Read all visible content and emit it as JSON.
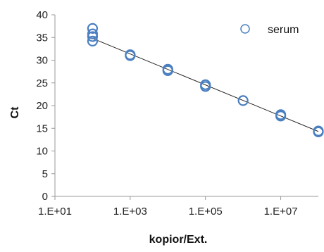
{
  "chart_data": {
    "type": "scatter",
    "xlabel": "kopior/Ext.",
    "ylabel": "Ct",
    "x_scale": "log10",
    "xlim": [
      10,
      100000000
    ],
    "ylim": [
      0,
      40
    ],
    "x_ticks": [
      10,
      1000,
      100000,
      10000000
    ],
    "x_tick_labels": [
      "1.E+01",
      "1.E+03",
      "1.E+05",
      "1.E+07"
    ],
    "y_ticks": [
      0,
      5,
      10,
      15,
      20,
      25,
      30,
      35,
      40
    ],
    "y_tick_labels": [
      "0",
      "5",
      "10",
      "15",
      "20",
      "25",
      "30",
      "35",
      "40"
    ],
    "grid": false,
    "legend_position": "top-right",
    "series": [
      {
        "name": "serum",
        "marker": "open-circle",
        "color": "#4a7fc1",
        "points": [
          {
            "x": 100,
            "y": 37.0
          },
          {
            "x": 100,
            "y": 35.8
          },
          {
            "x": 100,
            "y": 35.2
          },
          {
            "x": 100,
            "y": 34.2
          },
          {
            "x": 1000,
            "y": 31.2
          },
          {
            "x": 1000,
            "y": 31.0
          },
          {
            "x": 10000,
            "y": 28.0
          },
          {
            "x": 10000,
            "y": 27.7
          },
          {
            "x": 100000,
            "y": 24.6
          },
          {
            "x": 100000,
            "y": 24.2
          },
          {
            "x": 1000000,
            "y": 21.1
          },
          {
            "x": 10000000,
            "y": 18.0
          },
          {
            "x": 10000000,
            "y": 17.7
          },
          {
            "x": 100000000,
            "y": 14.4
          },
          {
            "x": 100000000,
            "y": 14.2
          }
        ]
      }
    ],
    "trendline": {
      "type": "linear-log",
      "from": {
        "x": 100,
        "y": 34.8
      },
      "to": {
        "x": 100000000,
        "y": 14.3
      },
      "color": "#222222"
    }
  }
}
